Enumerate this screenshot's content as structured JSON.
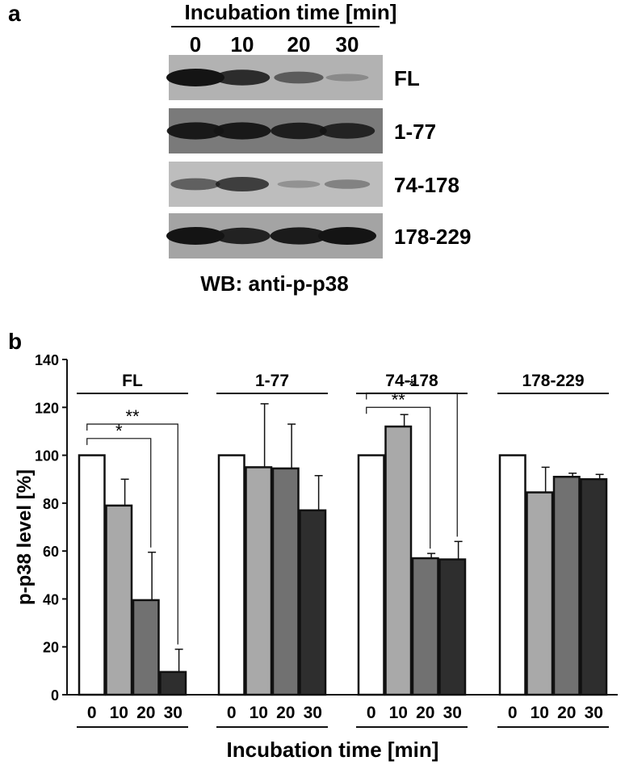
{
  "panel_a": {
    "label": "a",
    "header": "Incubation time [min]",
    "time_labels": [
      "0",
      "10",
      "20",
      "30"
    ],
    "blots": [
      {
        "name": "FL",
        "band_intensity": [
          1.0,
          0.85,
          0.55,
          0.2
        ]
      },
      {
        "name": "1-77",
        "band_intensity": [
          0.95,
          0.95,
          0.9,
          0.85
        ]
      },
      {
        "name": "74-178",
        "band_intensity": [
          0.55,
          0.75,
          0.2,
          0.35
        ]
      },
      {
        "name": "178-229",
        "band_intensity": [
          1.0,
          0.9,
          0.95,
          1.0
        ]
      }
    ],
    "caption": "WB: anti-p-p38"
  },
  "chart_data": {
    "panel_label": "b",
    "type": "bar",
    "ylabel": "p-p38 level [%]",
    "xlabel": "Incubation time [min]",
    "ylim": [
      0,
      140
    ],
    "yticks": [
      0,
      20,
      40,
      60,
      80,
      100,
      120,
      140
    ],
    "categories": [
      "0",
      "10",
      "20",
      "30"
    ],
    "bar_colors": [
      "#ffffff",
      "#a9a9a9",
      "#717171",
      "#2e2e2e"
    ],
    "groups": [
      {
        "name": "FL",
        "values": [
          100,
          79,
          39.5,
          9.5
        ],
        "errors": [
          0,
          11,
          20,
          9.5
        ],
        "significance": [
          {
            "from": 0,
            "to": 2,
            "label": "*",
            "y": 107
          },
          {
            "from": 0,
            "to": 3,
            "label": "**",
            "y": 113
          }
        ]
      },
      {
        "name": "1-77",
        "values": [
          100,
          95,
          94.5,
          77
        ],
        "errors": [
          0,
          26.5,
          18.5,
          14.5
        ],
        "significance": []
      },
      {
        "name": "74-178",
        "values": [
          100,
          112,
          57,
          56.5
        ],
        "errors": [
          0,
          5,
          2,
          7.5
        ],
        "significance": [
          {
            "from": 0,
            "to": 2,
            "label": "**",
            "y": 120
          },
          {
            "from": 0,
            "to": 3,
            "label": "*",
            "y": 126
          }
        ]
      },
      {
        "name": "178-229",
        "values": [
          100,
          84.5,
          91,
          90
        ],
        "errors": [
          0,
          10.5,
          1.5,
          2
        ],
        "significance": []
      }
    ]
  }
}
